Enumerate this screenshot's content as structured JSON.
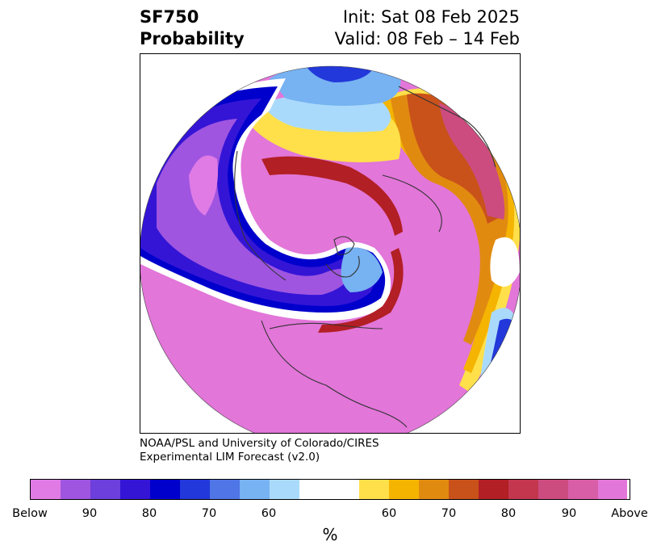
{
  "title": {
    "variable": "SF750",
    "product": "Probability",
    "init": "Init: Sat 08 Feb 2025",
    "valid": "Valid: 08 Feb – 14 Feb"
  },
  "credit": {
    "line1": "NOAA/PSL and University of Colorado/CIRES",
    "line2": "Experimental LIM Forecast (v2.0)"
  },
  "colorbar": {
    "unit": "%",
    "tick_labels": [
      "Below",
      "90",
      "80",
      "70",
      "60",
      "60",
      "70",
      "80",
      "90",
      "Above"
    ],
    "colors": [
      "#e07be6",
      "#9f55e0",
      "#6d3fdc",
      "#3415d6",
      "#0000cc",
      "#2238da",
      "#4f75e6",
      "#77b2f2",
      "#aadafb",
      "#ffffff",
      "#ffffff",
      "#ffe04a",
      "#f4b400",
      "#e18a10",
      "#c9521a",
      "#b21f24",
      "#c3364e",
      "#cc4c80",
      "#d85ea8",
      "#e276d9"
    ]
  },
  "map": {
    "projection": "north-polar-stereographic",
    "regions_drawn": [
      "North America",
      "Greenland",
      "Europe",
      "Asia",
      "Arctic"
    ],
    "colors": {
      "below_core": "#e07be6",
      "below_purple": "#9f55e0",
      "below_blue": "#2238da",
      "below_light": "#77b2f2",
      "above_pink": "#e276d9",
      "above_red": "#b21f24",
      "above_orange": "#e18a10",
      "above_yellow": "#ffe04a"
    }
  }
}
